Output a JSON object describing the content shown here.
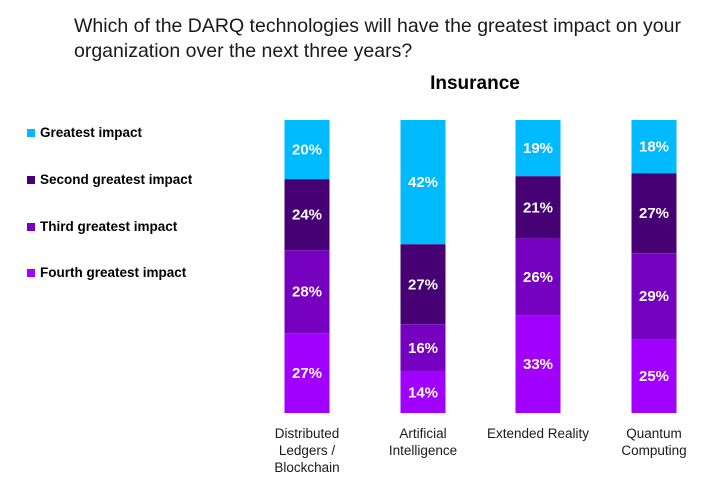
{
  "chart_data": {
    "type": "bar",
    "stacked": true,
    "title": "Which of the DARQ technologies will have the greatest impact on your organization over the next three years?",
    "subtitle": "Insurance",
    "categories": [
      "Distributed Ledgers / Blockchain",
      "Artificial Intelligence",
      "Extended Reality",
      "Quantum Computing"
    ],
    "category_lines": [
      [
        "Distributed",
        "Ledgers /",
        "Blockchain"
      ],
      [
        "Artificial",
        "Intelligence"
      ],
      [
        "Extended Reality"
      ],
      [
        "Quantum",
        "Computing"
      ]
    ],
    "series": [
      {
        "name": "Greatest impact",
        "color": "#00BAFF",
        "values": [
          20,
          42,
          19,
          18
        ]
      },
      {
        "name": "Second greatest impact",
        "color": "#460073",
        "values": [
          24,
          27,
          21,
          27
        ]
      },
      {
        "name": "Third greatest impact",
        "color": "#7500C0",
        "values": [
          28,
          16,
          26,
          29
        ]
      },
      {
        "name": "Fourth greatest impact",
        "color": "#A100FF",
        "values": [
          27,
          14,
          33,
          25
        ]
      }
    ],
    "value_suffix": "%",
    "legend_position": "left",
    "xlabel": "",
    "ylabel": "",
    "ylim": [
      0,
      100
    ],
    "grid": false
  }
}
